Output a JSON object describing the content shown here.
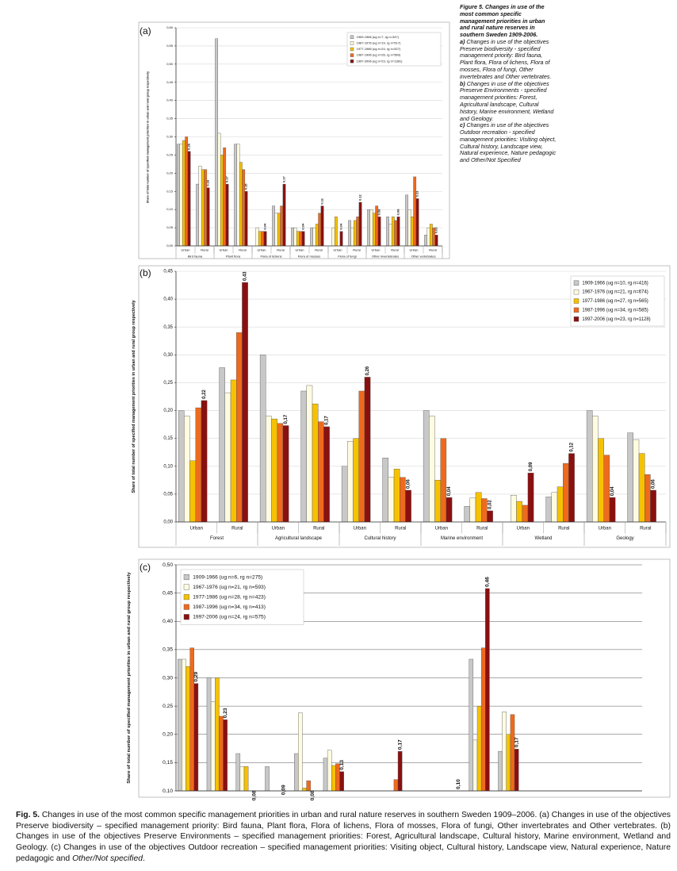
{
  "side_caption": {
    "title": "Figure 5. Changes in use of the most common specific management priorities in urban and rural nature reserves in southern Sweden 1909-2006.",
    "paragraphs": [
      {
        "label": "a)",
        "text": "Changes in use of the objectives Preserve biodiversity - specified management priority: Bird fauna, Plant flora, Flora of lichens, Flora of mosses, Flora of fungi, Other invertebrates and Other vertebrates."
      },
      {
        "label": "b)",
        "text": "Changes in use of the objectives Preserve Environments - specified management priorities: Forest, Agricultural landscape, Cultural history, Marine environment, Wetland and Geology."
      },
      {
        "label": "c)",
        "text": "Changes in use of the objectives Outdoor recreation - specified management priorities: Visiting object, Cultural history, Landscape view, Natural experience, Nature pedagogic and Other/Not Specified"
      }
    ]
  },
  "caption": {
    "label": "Fig. 5.",
    "text": "Changes in use of the most common specific management priorities in urban and rural nature reserves in southern Sweden 1909–2006. (a) Changes in use of the objectives Preserve biodiversity – specified management priority: Bird fauna, Plant flora, Flora of lichens, Flora of mosses, Flora of fungi, Other invertebrates and Other vertebrates. (b) Changes in use of the objectives Preserve Environments – specified management priorities: Forest, Agricultural landscape, Cultural history, Marine environment, Wetland and Geology. (c) Changes in use of the objectives Outdoor recreation – specified management priorities: Visiting object, Cultural history, Landscape view, Natural experience, Nature pedagogic and",
    "italic": "Other/Not specified",
    "end": "."
  },
  "chart_data": [
    {
      "type": "bar",
      "panel": "(a)",
      "ylabel": "Share of total number of specified management priorities in urban and rural group respectively",
      "groups": [
        "Bird fauna",
        "Plant flora",
        "Flora of lichens",
        "Flora of mosses",
        "Flora of fungi",
        "Other invertebrates",
        "Other vertebrates"
      ],
      "categories": [
        "Urban",
        "Rural",
        "Urban",
        "Rural",
        "Urban",
        "Rural",
        "Urban",
        "Rural",
        "Urban",
        "Rural",
        "Urban",
        "Rural",
        "Urban",
        "Rural"
      ],
      "series": [
        {
          "name": "1909-1966 (ug n=7, rg n=347)",
          "color": "#c8c8c8",
          "values": [
            0.28,
            0.17,
            0.57,
            0.28,
            null,
            0.11,
            0.05,
            0.05,
            null,
            0.07,
            0.1,
            0.08,
            0.14,
            0.03
          ]
        },
        {
          "name": "1967-1976 (ug n=19, rg n=517)",
          "color": "#fffbe0",
          "values": [
            0.28,
            0.22,
            0.31,
            0.28,
            0.05,
            0.09,
            0.05,
            0.05,
            0.05,
            0.05,
            0.1,
            0.06,
            0.1,
            0.05
          ]
        },
        {
          "name": "1977-1986 (ug n=24, rg n=527)",
          "color": "#f6c200",
          "values": [
            0.29,
            0.21,
            0.25,
            0.23,
            0.04,
            0.09,
            0.04,
            0.06,
            0.08,
            0.07,
            0.09,
            0.08,
            0.08,
            0.06
          ]
        },
        {
          "name": "1987-1996 (ug n=26, rg n=560)",
          "color": "#ee6a1c",
          "values": [
            0.3,
            0.21,
            0.27,
            0.21,
            0.04,
            0.11,
            0.04,
            0.09,
            null,
            0.08,
            0.11,
            0.07,
            0.19,
            0.05
          ]
        },
        {
          "name": "1997-2006 (ug n=23, rg n=1381)",
          "color": "#8a1010",
          "values": [
            0.26,
            0.16,
            0.17,
            0.15,
            0.04,
            0.17,
            0.04,
            0.11,
            0.04,
            0.12,
            0.08,
            0.08,
            0.13,
            0.03
          ],
          "value_labels": [
            "0.26",
            "0.16",
            "0.17",
            "0.15",
            "0.04",
            "0.17",
            "0.04",
            "0.11",
            "0.04",
            "0.12",
            "0.08",
            "0.08",
            "0.13",
            "0.03"
          ]
        }
      ],
      "ylim": [
        0,
        0.6
      ],
      "yticks": [
        {
          "value": 0,
          "label": "0,00"
        },
        {
          "value": 0.05,
          "label": "0,05"
        },
        {
          "value": 0.1,
          "label": "0,10"
        },
        {
          "value": 0.15,
          "label": "0,15"
        },
        {
          "value": 0.2,
          "label": "0,20"
        },
        {
          "value": 0.25,
          "label": "0,25"
        },
        {
          "value": 0.3,
          "label": "0,30"
        },
        {
          "value": 0.35,
          "label": "0,35"
        },
        {
          "value": 0.4,
          "label": "0,40"
        },
        {
          "value": 0.45,
          "label": "0,45"
        },
        {
          "value": 0.5,
          "label": "0,50"
        },
        {
          "value": 0.55,
          "label": "0,55"
        },
        {
          "value": 0.6,
          "label": "0,60"
        }
      ],
      "grid": true,
      "legend": "upper right"
    },
    {
      "type": "bar",
      "panel": "(b)",
      "ylabel": "Share of total number of specified management priorities in urban and rural group respectively",
      "groups": [
        "Forest",
        "Agricultural landscape",
        "Cultural history",
        "Marine environment",
        "Wetland",
        "Geology"
      ],
      "categories": [
        "Urban",
        "Rural",
        "Urban",
        "Rural",
        "Urban",
        "Rural",
        "Urban",
        "Rural",
        "Urban",
        "Rural",
        "Urban",
        "Rural"
      ],
      "series": [
        {
          "name": "1909-1966 (ug n=10, rg n=416)",
          "color": "#c8c8c8",
          "values": [
            0.2,
            0.277,
            0.3,
            0.235,
            0.1,
            0.115,
            0.2,
            0.028,
            null,
            0.045,
            0.2,
            0.16
          ]
        },
        {
          "name": "1967-1976 (ug n=21, rg n=674)",
          "color": "#fffbe0",
          "values": [
            0.19,
            0.232,
            0.19,
            0.245,
            0.145,
            0.08,
            0.19,
            0.043,
            0.048,
            0.053,
            0.19,
            0.148
          ]
        },
        {
          "name": "1977-1986 (ug n=27, rg n=565)",
          "color": "#f6c200",
          "values": [
            0.11,
            0.255,
            0.185,
            0.212,
            0.15,
            0.095,
            0.075,
            0.053,
            0.037,
            0.063,
            0.15,
            0.123
          ]
        },
        {
          "name": "1987-1996 (ug n=34, rg n=585)",
          "color": "#ee6a1c",
          "values": [
            0.205,
            0.34,
            0.177,
            0.18,
            0.235,
            0.08,
            0.15,
            0.042,
            0.03,
            0.105,
            0.12,
            0.085
          ]
        },
        {
          "name": "1997-2006 (ug n=23, rg n=1128)",
          "color": "#8a1010",
          "values": [
            0.218,
            0.43,
            0.173,
            0.171,
            0.26,
            0.057,
            0.044,
            0.02,
            0.088,
            0.123,
            0.044,
            0.057
          ],
          "value_labels": [
            "0,22",
            "0,43",
            "0,17",
            "0,17",
            "0,26",
            "0,06",
            "0,04",
            "0,02",
            "0,09",
            "0,12",
            "0,04",
            "0,06"
          ]
        }
      ],
      "ylim": [
        0,
        0.45
      ],
      "yticks": [
        {
          "value": 0,
          "label": "0,00"
        },
        {
          "value": 0.05,
          "label": "0,05"
        },
        {
          "value": 0.1,
          "label": "0,10"
        },
        {
          "value": 0.15,
          "label": "0,15"
        },
        {
          "value": 0.2,
          "label": "0,20"
        },
        {
          "value": 0.25,
          "label": "0,25"
        },
        {
          "value": 0.3,
          "label": "0,30"
        },
        {
          "value": 0.35,
          "label": "0,35"
        },
        {
          "value": 0.4,
          "label": "0,40"
        },
        {
          "value": 0.45,
          "label": "0,45"
        }
      ],
      "grid": true,
      "legend": "upper right"
    },
    {
      "type": "bar",
      "panel": "(c)",
      "ylabel": "Share of total number of specified management priorities in urban and rural group respectively",
      "categories": [
        null,
        null,
        null,
        null,
        null,
        null,
        null,
        null,
        null,
        null,
        null,
        null,
        null,
        null,
        null,
        null
      ],
      "series": [
        {
          "name": "1909-1966 (ug n=6, rg n=275)",
          "color": "#c8c8c8",
          "values": [
            0.333,
            0.3,
            0.166,
            0.143,
            0.166,
            0.158,
            null,
            null,
            null,
            null,
            0.333,
            0.17,
            null,
            null,
            null,
            null
          ]
        },
        {
          "name": "1967-1976 (ug n=21, rg n=593)",
          "color": "#fffbe0",
          "values": [
            0.333,
            0.258,
            0.143,
            0.095,
            0.238,
            0.172,
            null,
            null,
            null,
            null,
            0.19,
            0.24,
            null,
            null,
            null,
            null
          ]
        },
        {
          "name": "1977-1986 (ug n=28, rg n=423)",
          "color": "#f6c200",
          "values": [
            0.32,
            0.3,
            0.143,
            0.1,
            0.105,
            0.145,
            null,
            null,
            null,
            null,
            0.25,
            0.2,
            null,
            null,
            null,
            null
          ]
        },
        {
          "name": "1987-1996 (ug n=34, rg n=413)",
          "color": "#ee6a1c",
          "values": [
            0.353,
            0.232,
            null,
            0.1,
            0.118,
            0.148,
            null,
            0.12,
            null,
            null,
            0.353,
            0.235,
            null,
            null,
            null,
            null
          ]
        },
        {
          "name": "1997-2006 (ug n=24, rg n=575)",
          "color": "#8a1010",
          "values": [
            0.29,
            0.226,
            0.08,
            0.09,
            0.08,
            0.134,
            null,
            0.17,
            null,
            0.1,
            0.458,
            0.174,
            null,
            null,
            null,
            null
          ],
          "value_labels": [
            "0,29",
            "0,23",
            "0,08",
            "0,09",
            "0,08",
            "0,13",
            null,
            "0,17",
            null,
            "0,10",
            "0,46",
            "0,17",
            null,
            null,
            null,
            null
          ]
        }
      ],
      "ylim": [
        0.1,
        0.5
      ],
      "yticks": [
        {
          "value": 0.1,
          "label": "0,10"
        },
        {
          "value": 0.15,
          "label": "0,15"
        },
        {
          "value": 0.2,
          "label": "0,20"
        },
        {
          "value": 0.25,
          "label": "0,25"
        },
        {
          "value": 0.3,
          "label": "0,30"
        },
        {
          "value": 0.35,
          "label": "0,35"
        },
        {
          "value": 0.4,
          "label": "0,40"
        },
        {
          "value": 0.45,
          "label": "0,45"
        },
        {
          "value": 0.5,
          "label": "0,50"
        }
      ],
      "grid": true,
      "legend": "upper left"
    }
  ]
}
